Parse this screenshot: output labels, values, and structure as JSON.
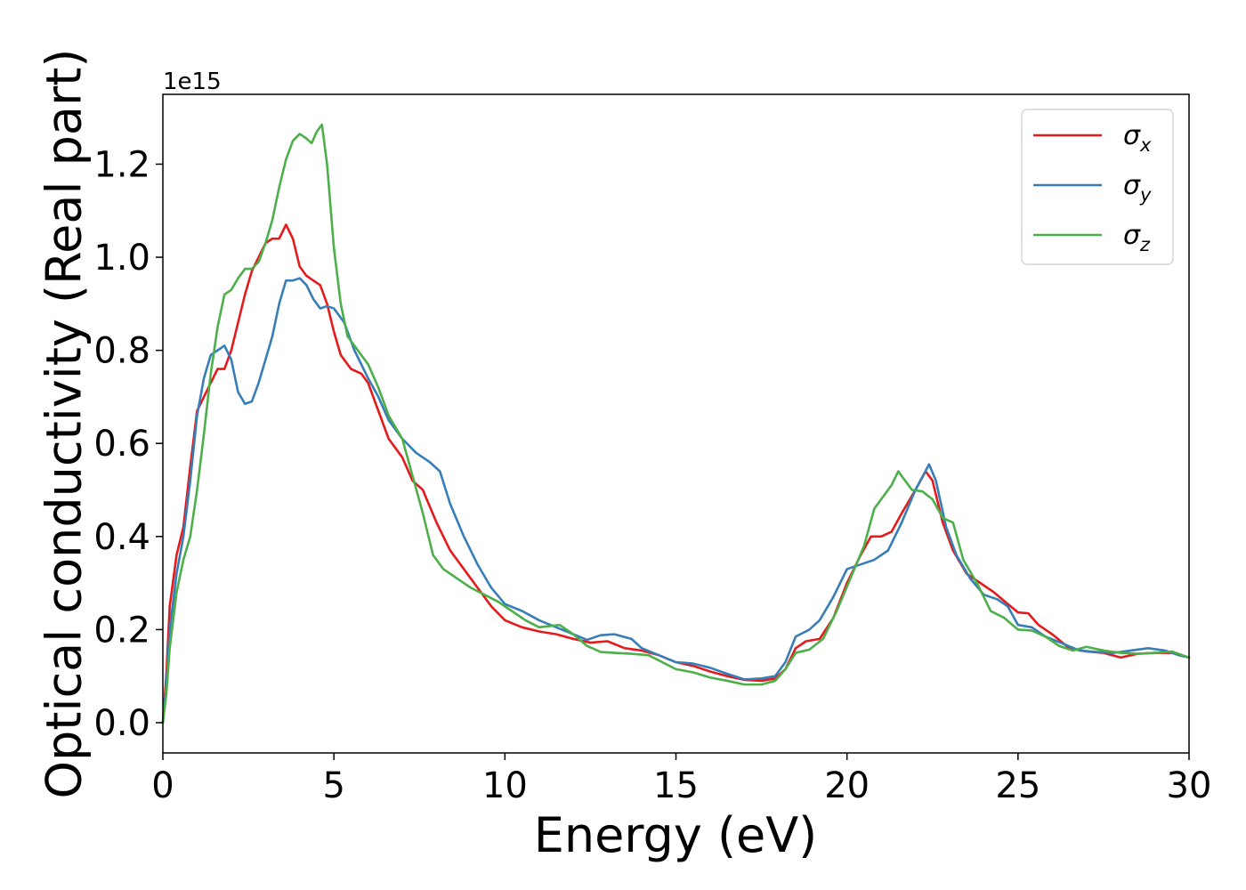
{
  "chart_data": {
    "type": "line",
    "xlabel": "Energy (eV)",
    "ylabel": "Optical conductivity (Real part)",
    "y_offset_label": "1e15",
    "xlim": [
      0,
      30
    ],
    "ylim": [
      -0.065,
      1.35
    ],
    "x_ticks": [
      0,
      5,
      10,
      15,
      20,
      25,
      30
    ],
    "x_tick_labels": [
      "0",
      "5",
      "10",
      "15",
      "20",
      "25",
      "30"
    ],
    "y_ticks": [
      0.0,
      0.2,
      0.4,
      0.6,
      0.8,
      1.0,
      1.2
    ],
    "y_tick_labels": [
      "0.0",
      "0.2",
      "0.4",
      "0.6",
      "0.8",
      "1.0",
      "1.2"
    ],
    "grid": false,
    "legend_position": "top-right",
    "series": [
      {
        "name": "σ",
        "subscript": "x",
        "color": "#e41a1c",
        "points": [
          [
            0,
            0.0
          ],
          [
            0.1,
            0.1
          ],
          [
            0.2,
            0.25
          ],
          [
            0.4,
            0.36
          ],
          [
            0.6,
            0.42
          ],
          [
            0.8,
            0.55
          ],
          [
            1.0,
            0.67
          ],
          [
            1.2,
            0.7
          ],
          [
            1.4,
            0.73
          ],
          [
            1.6,
            0.76
          ],
          [
            1.8,
            0.76
          ],
          [
            2.0,
            0.8
          ],
          [
            2.2,
            0.86
          ],
          [
            2.4,
            0.92
          ],
          [
            2.6,
            0.97
          ],
          [
            2.8,
            1.0
          ],
          [
            3.0,
            1.03
          ],
          [
            3.2,
            1.04
          ],
          [
            3.4,
            1.04
          ],
          [
            3.6,
            1.07
          ],
          [
            3.8,
            1.04
          ],
          [
            4.0,
            0.98
          ],
          [
            4.2,
            0.96
          ],
          [
            4.4,
            0.95
          ],
          [
            4.6,
            0.94
          ],
          [
            4.8,
            0.9
          ],
          [
            5.0,
            0.84
          ],
          [
            5.2,
            0.79
          ],
          [
            5.5,
            0.76
          ],
          [
            5.8,
            0.75
          ],
          [
            6.0,
            0.73
          ],
          [
            6.3,
            0.67
          ],
          [
            6.6,
            0.61
          ],
          [
            7.0,
            0.57
          ],
          [
            7.3,
            0.52
          ],
          [
            7.6,
            0.5
          ],
          [
            8.0,
            0.43
          ],
          [
            8.4,
            0.37
          ],
          [
            8.8,
            0.33
          ],
          [
            9.2,
            0.29
          ],
          [
            9.6,
            0.25
          ],
          [
            10.0,
            0.22
          ],
          [
            10.5,
            0.205
          ],
          [
            11.0,
            0.196
          ],
          [
            11.5,
            0.19
          ],
          [
            12.0,
            0.18
          ],
          [
            12.5,
            0.172
          ],
          [
            13.0,
            0.175
          ],
          [
            13.5,
            0.16
          ],
          [
            14.0,
            0.155
          ],
          [
            14.5,
            0.145
          ],
          [
            15.0,
            0.13
          ],
          [
            15.5,
            0.122
          ],
          [
            16.0,
            0.11
          ],
          [
            16.5,
            0.1
          ],
          [
            17.0,
            0.092
          ],
          [
            17.5,
            0.09
          ],
          [
            17.9,
            0.095
          ],
          [
            18.2,
            0.115
          ],
          [
            18.5,
            0.16
          ],
          [
            18.8,
            0.175
          ],
          [
            19.2,
            0.18
          ],
          [
            19.6,
            0.225
          ],
          [
            20.0,
            0.3
          ],
          [
            20.4,
            0.36
          ],
          [
            20.7,
            0.4
          ],
          [
            21.0,
            0.4
          ],
          [
            21.3,
            0.41
          ],
          [
            21.6,
            0.45
          ],
          [
            22.0,
            0.5
          ],
          [
            22.3,
            0.54
          ],
          [
            22.5,
            0.52
          ],
          [
            22.8,
            0.43
          ],
          [
            23.1,
            0.37
          ],
          [
            23.5,
            0.32
          ],
          [
            23.9,
            0.3
          ],
          [
            24.3,
            0.28
          ],
          [
            24.7,
            0.255
          ],
          [
            25.0,
            0.237
          ],
          [
            25.3,
            0.235
          ],
          [
            25.6,
            0.21
          ],
          [
            26.0,
            0.19
          ],
          [
            26.5,
            0.16
          ],
          [
            27.0,
            0.153
          ],
          [
            27.5,
            0.15
          ],
          [
            28.0,
            0.14
          ],
          [
            28.5,
            0.148
          ],
          [
            29.0,
            0.15
          ],
          [
            29.5,
            0.15
          ],
          [
            30.0,
            0.14
          ]
        ]
      },
      {
        "name": "σ",
        "subscript": "y",
        "color": "#377eb8",
        "points": [
          [
            0,
            0.0
          ],
          [
            0.1,
            0.08
          ],
          [
            0.2,
            0.2
          ],
          [
            0.4,
            0.32
          ],
          [
            0.6,
            0.4
          ],
          [
            0.8,
            0.52
          ],
          [
            1.0,
            0.66
          ],
          [
            1.2,
            0.74
          ],
          [
            1.4,
            0.79
          ],
          [
            1.6,
            0.8
          ],
          [
            1.8,
            0.81
          ],
          [
            2.0,
            0.78
          ],
          [
            2.2,
            0.71
          ],
          [
            2.4,
            0.685
          ],
          [
            2.6,
            0.69
          ],
          [
            2.8,
            0.73
          ],
          [
            3.0,
            0.78
          ],
          [
            3.2,
            0.83
          ],
          [
            3.4,
            0.9
          ],
          [
            3.6,
            0.95
          ],
          [
            3.8,
            0.95
          ],
          [
            4.0,
            0.955
          ],
          [
            4.2,
            0.94
          ],
          [
            4.4,
            0.91
          ],
          [
            4.6,
            0.89
          ],
          [
            4.8,
            0.895
          ],
          [
            5.0,
            0.89
          ],
          [
            5.3,
            0.86
          ],
          [
            5.6,
            0.8
          ],
          [
            6.0,
            0.74
          ],
          [
            6.3,
            0.7
          ],
          [
            6.6,
            0.65
          ],
          [
            7.0,
            0.61
          ],
          [
            7.4,
            0.58
          ],
          [
            7.8,
            0.56
          ],
          [
            8.1,
            0.54
          ],
          [
            8.4,
            0.47
          ],
          [
            8.8,
            0.4
          ],
          [
            9.2,
            0.34
          ],
          [
            9.6,
            0.29
          ],
          [
            10.0,
            0.255
          ],
          [
            10.5,
            0.24
          ],
          [
            11.0,
            0.22
          ],
          [
            11.5,
            0.205
          ],
          [
            12.0,
            0.19
          ],
          [
            12.4,
            0.178
          ],
          [
            12.8,
            0.188
          ],
          [
            13.2,
            0.19
          ],
          [
            13.7,
            0.18
          ],
          [
            14.0,
            0.16
          ],
          [
            14.5,
            0.145
          ],
          [
            15.0,
            0.13
          ],
          [
            15.5,
            0.127
          ],
          [
            16.0,
            0.118
          ],
          [
            16.5,
            0.105
          ],
          [
            17.0,
            0.093
          ],
          [
            17.5,
            0.095
          ],
          [
            17.9,
            0.1
          ],
          [
            18.2,
            0.13
          ],
          [
            18.5,
            0.185
          ],
          [
            18.9,
            0.2
          ],
          [
            19.2,
            0.22
          ],
          [
            19.6,
            0.27
          ],
          [
            20.0,
            0.33
          ],
          [
            20.4,
            0.34
          ],
          [
            20.8,
            0.35
          ],
          [
            21.2,
            0.37
          ],
          [
            21.6,
            0.43
          ],
          [
            22.0,
            0.5
          ],
          [
            22.4,
            0.555
          ],
          [
            22.6,
            0.52
          ],
          [
            22.9,
            0.42
          ],
          [
            23.2,
            0.36
          ],
          [
            23.6,
            0.31
          ],
          [
            24.0,
            0.275
          ],
          [
            24.4,
            0.265
          ],
          [
            24.7,
            0.25
          ],
          [
            25.0,
            0.21
          ],
          [
            25.4,
            0.205
          ],
          [
            25.8,
            0.185
          ],
          [
            26.3,
            0.17
          ],
          [
            26.8,
            0.155
          ],
          [
            27.3,
            0.152
          ],
          [
            27.8,
            0.15
          ],
          [
            28.3,
            0.155
          ],
          [
            28.8,
            0.16
          ],
          [
            29.3,
            0.155
          ],
          [
            29.7,
            0.145
          ],
          [
            30.0,
            0.14
          ]
        ]
      },
      {
        "name": "σ",
        "subscript": "z",
        "color": "#4daf4a",
        "points": [
          [
            0,
            0.0
          ],
          [
            0.1,
            0.06
          ],
          [
            0.2,
            0.16
          ],
          [
            0.4,
            0.28
          ],
          [
            0.6,
            0.35
          ],
          [
            0.8,
            0.4
          ],
          [
            1.0,
            0.5
          ],
          [
            1.2,
            0.62
          ],
          [
            1.4,
            0.75
          ],
          [
            1.6,
            0.85
          ],
          [
            1.8,
            0.92
          ],
          [
            2.0,
            0.93
          ],
          [
            2.2,
            0.955
          ],
          [
            2.4,
            0.975
          ],
          [
            2.6,
            0.975
          ],
          [
            2.8,
            0.99
          ],
          [
            3.0,
            1.03
          ],
          [
            3.2,
            1.08
          ],
          [
            3.4,
            1.15
          ],
          [
            3.6,
            1.21
          ],
          [
            3.8,
            1.25
          ],
          [
            4.0,
            1.265
          ],
          [
            4.2,
            1.255
          ],
          [
            4.35,
            1.245
          ],
          [
            4.5,
            1.27
          ],
          [
            4.65,
            1.285
          ],
          [
            4.8,
            1.2
          ],
          [
            5.0,
            1.02
          ],
          [
            5.2,
            0.9
          ],
          [
            5.4,
            0.83
          ],
          [
            5.7,
            0.8
          ],
          [
            6.0,
            0.77
          ],
          [
            6.3,
            0.72
          ],
          [
            6.6,
            0.66
          ],
          [
            7.0,
            0.61
          ],
          [
            7.3,
            0.53
          ],
          [
            7.6,
            0.45
          ],
          [
            7.9,
            0.36
          ],
          [
            8.2,
            0.33
          ],
          [
            8.6,
            0.31
          ],
          [
            9.0,
            0.29
          ],
          [
            9.4,
            0.275
          ],
          [
            9.8,
            0.26
          ],
          [
            10.2,
            0.24
          ],
          [
            10.6,
            0.22
          ],
          [
            11.0,
            0.205
          ],
          [
            11.6,
            0.21
          ],
          [
            12.0,
            0.19
          ],
          [
            12.4,
            0.165
          ],
          [
            12.8,
            0.152
          ],
          [
            13.2,
            0.15
          ],
          [
            13.7,
            0.148
          ],
          [
            14.2,
            0.145
          ],
          [
            14.6,
            0.13
          ],
          [
            15.0,
            0.115
          ],
          [
            15.5,
            0.108
          ],
          [
            16.0,
            0.097
          ],
          [
            16.5,
            0.09
          ],
          [
            17.0,
            0.082
          ],
          [
            17.5,
            0.082
          ],
          [
            17.9,
            0.09
          ],
          [
            18.2,
            0.115
          ],
          [
            18.5,
            0.15
          ],
          [
            18.9,
            0.157
          ],
          [
            19.3,
            0.18
          ],
          [
            19.7,
            0.24
          ],
          [
            20.1,
            0.31
          ],
          [
            20.5,
            0.38
          ],
          [
            20.8,
            0.46
          ],
          [
            21.1,
            0.49
          ],
          [
            21.3,
            0.51
          ],
          [
            21.5,
            0.54
          ],
          [
            21.7,
            0.52
          ],
          [
            21.9,
            0.5
          ],
          [
            22.2,
            0.497
          ],
          [
            22.5,
            0.48
          ],
          [
            22.8,
            0.44
          ],
          [
            23.1,
            0.43
          ],
          [
            23.4,
            0.35
          ],
          [
            23.8,
            0.3
          ],
          [
            24.2,
            0.24
          ],
          [
            24.6,
            0.225
          ],
          [
            25.0,
            0.2
          ],
          [
            25.4,
            0.198
          ],
          [
            25.8,
            0.185
          ],
          [
            26.2,
            0.165
          ],
          [
            26.6,
            0.155
          ],
          [
            27.0,
            0.163
          ],
          [
            27.5,
            0.155
          ],
          [
            28.0,
            0.15
          ],
          [
            28.5,
            0.148
          ],
          [
            29.0,
            0.15
          ],
          [
            29.5,
            0.153
          ],
          [
            30.0,
            0.14
          ]
        ]
      }
    ]
  }
}
